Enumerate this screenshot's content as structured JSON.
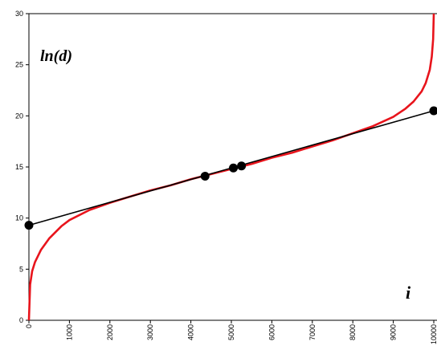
{
  "chart_data": {
    "type": "line",
    "title": "",
    "xlabel": "",
    "ylabel": "",
    "xlim": [
      0,
      10000
    ],
    "ylim": [
      0,
      30
    ],
    "x_ticks": [
      "0",
      "1000",
      "2000",
      "3000",
      "4000",
      "5000",
      "6000",
      "7000",
      "8000",
      "9000",
      "10000"
    ],
    "y_ticks": [
      "0",
      "5",
      "10",
      "15",
      "20",
      "25",
      "30"
    ],
    "grid": false,
    "annotations": {
      "y_label": "ln(d)",
      "x_label": "i"
    },
    "series": [
      {
        "color": "#e8141c",
        "x": [
          0,
          30,
          80,
          150,
          300,
          500,
          800,
          1000,
          1500,
          2000,
          2500,
          3000,
          3500,
          4000,
          4500,
          5000,
          5500,
          6000,
          6500,
          7000,
          7500,
          8000,
          8500,
          9000,
          9300,
          9500,
          9700,
          9800,
          9900,
          9950,
          9985,
          10000
        ],
        "y": [
          0.0,
          3.5,
          4.8,
          5.7,
          6.9,
          8.0,
          9.2,
          9.8,
          10.8,
          11.5,
          12.1,
          12.7,
          13.2,
          13.8,
          14.3,
          14.8,
          15.3,
          15.9,
          16.4,
          17.0,
          17.6,
          18.3,
          19.0,
          19.9,
          20.7,
          21.4,
          22.4,
          23.2,
          24.5,
          25.8,
          27.5,
          30.0
        ]
      },
      {
        "color": "#000000",
        "x": [
          0,
          10000
        ],
        "y": [
          9.3,
          20.5
        ]
      }
    ],
    "markers": [
      {
        "x": 0,
        "y": 9.3
      },
      {
        "x": 4350,
        "y": 14.1
      },
      {
        "x": 5050,
        "y": 14.9
      },
      {
        "x": 5250,
        "y": 15.1
      },
      {
        "x": 10000,
        "y": 20.5
      }
    ]
  }
}
